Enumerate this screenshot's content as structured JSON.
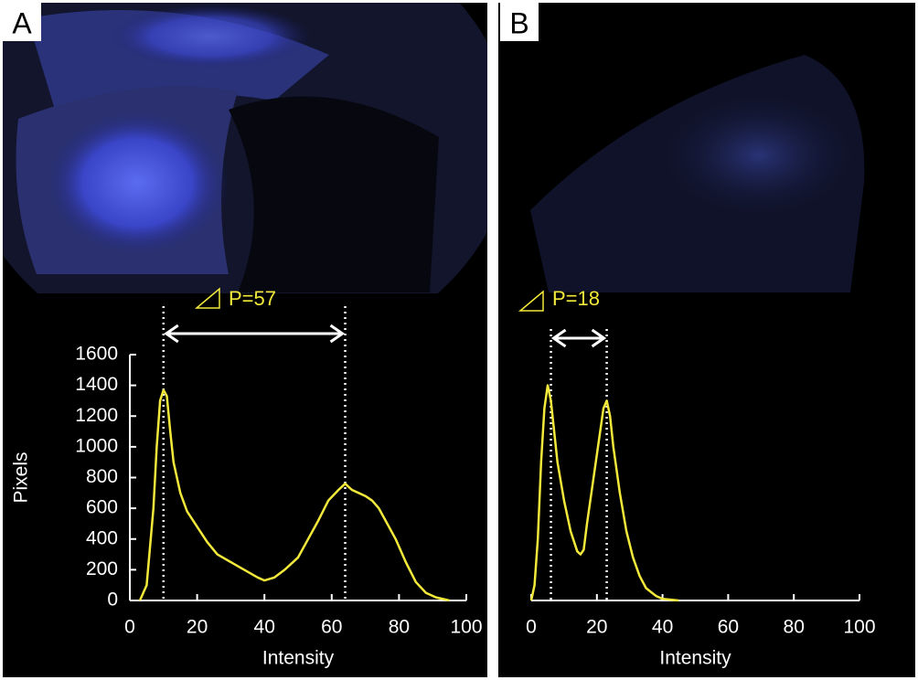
{
  "chart_data": [
    {
      "type": "line",
      "panel_label": "A",
      "annotation": "P=57",
      "x_label": "Intensity",
      "y_label": "Pixels",
      "color": "#f2e93a",
      "x": [
        3,
        5,
        7,
        8,
        9,
        10,
        11,
        12,
        13,
        15,
        17,
        20,
        23,
        26,
        30,
        34,
        38,
        40,
        43,
        46,
        50,
        53,
        56,
        59,
        62,
        64,
        66,
        68,
        70,
        72,
        74,
        76,
        79,
        82,
        85,
        88,
        91,
        95
      ],
      "values": [
        0,
        100,
        600,
        1000,
        1300,
        1370,
        1330,
        1100,
        900,
        700,
        580,
        480,
        380,
        300,
        250,
        200,
        150,
        130,
        150,
        200,
        280,
        400,
        520,
        650,
        720,
        760,
        720,
        700,
        680,
        650,
        600,
        520,
        400,
        250,
        120,
        50,
        20,
        0
      ],
      "reference_lines": [
        10,
        64
      ],
      "xlim": [
        0,
        100
      ],
      "xticks": [
        0,
        20,
        40,
        60,
        80,
        100
      ],
      "ylim": [
        0,
        1600
      ],
      "yticks": [
        0,
        200,
        400,
        600,
        800,
        1000,
        1200,
        1400,
        1600
      ]
    },
    {
      "type": "line",
      "panel_label": "B",
      "annotation": "P=18",
      "x_label": "Intensity",
      "color": "#f2e93a",
      "x": [
        0,
        1,
        2,
        3,
        4,
        5,
        6,
        7,
        8,
        10,
        12,
        14,
        15,
        16,
        17,
        19,
        21,
        22,
        23,
        24,
        25,
        27,
        29,
        31,
        33,
        35,
        38,
        40,
        45
      ],
      "values": [
        0,
        100,
        400,
        900,
        1250,
        1400,
        1300,
        1100,
        900,
        650,
        450,
        320,
        300,
        330,
        500,
        800,
        1100,
        1250,
        1300,
        1200,
        1000,
        700,
        450,
        280,
        160,
        80,
        30,
        10,
        0
      ],
      "reference_lines": [
        6,
        23
      ],
      "xlim": [
        0,
        100
      ],
      "xticks": [
        0,
        20,
        40,
        60,
        80,
        100
      ],
      "ylim": [
        0,
        1600
      ]
    }
  ]
}
